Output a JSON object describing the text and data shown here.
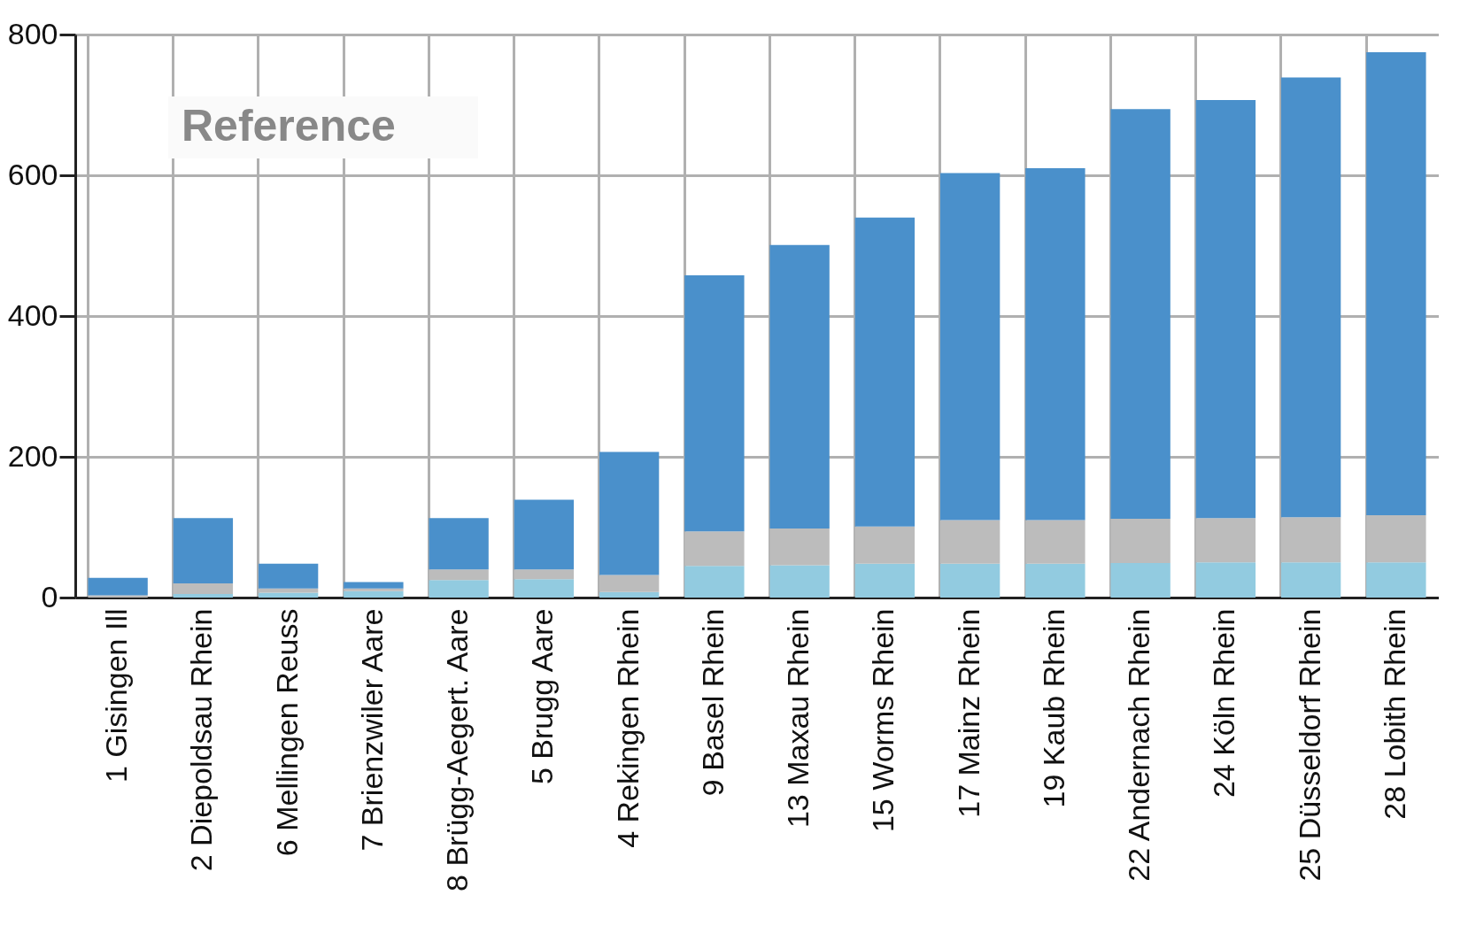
{
  "chart_data": {
    "type": "bar",
    "stacked": true,
    "categories": [
      "1 Gisingen Ill",
      "2 Diepoldsau Rhein",
      "6 Mellingen Reuss",
      "7 Brienzwiler Aare",
      "8 Brügg-Aegert. Aare",
      "5 Brugg Aare",
      "4 Rekingen Rhein",
      "9 Basel Rhein",
      "13 Maxau Rhein",
      "15 Worms Rhein",
      "17 Mainz Rhein",
      "19 Kaub Rhein",
      "22 Andernach Rhein",
      "24 Köln Rhein",
      "25 Düsseldorf Rhein",
      "28 Lobith Rhein"
    ],
    "series": [
      {
        "color": "#92cbe0",
        "values": [
          null,
          5,
          7,
          9,
          25,
          26,
          8,
          45,
          46,
          48,
          48,
          48,
          49,
          50,
          50,
          50
        ]
      },
      {
        "color": "#bcbcbc",
        "values": [
          3,
          15,
          6,
          4,
          15,
          14,
          24,
          49,
          52,
          53,
          62,
          62,
          63,
          63,
          64,
          67
        ]
      },
      {
        "color": "#4a90cb",
        "values": [
          25,
          93,
          35,
          9,
          73,
          99,
          175,
          364,
          403,
          439,
          493,
          500,
          582,
          594,
          625,
          658
        ]
      }
    ],
    "ylim": [
      0,
      800
    ],
    "yticks": [
      0,
      200,
      400,
      600,
      800
    ],
    "grid": true,
    "legend": false,
    "annotations": [
      "Reference"
    ]
  }
}
